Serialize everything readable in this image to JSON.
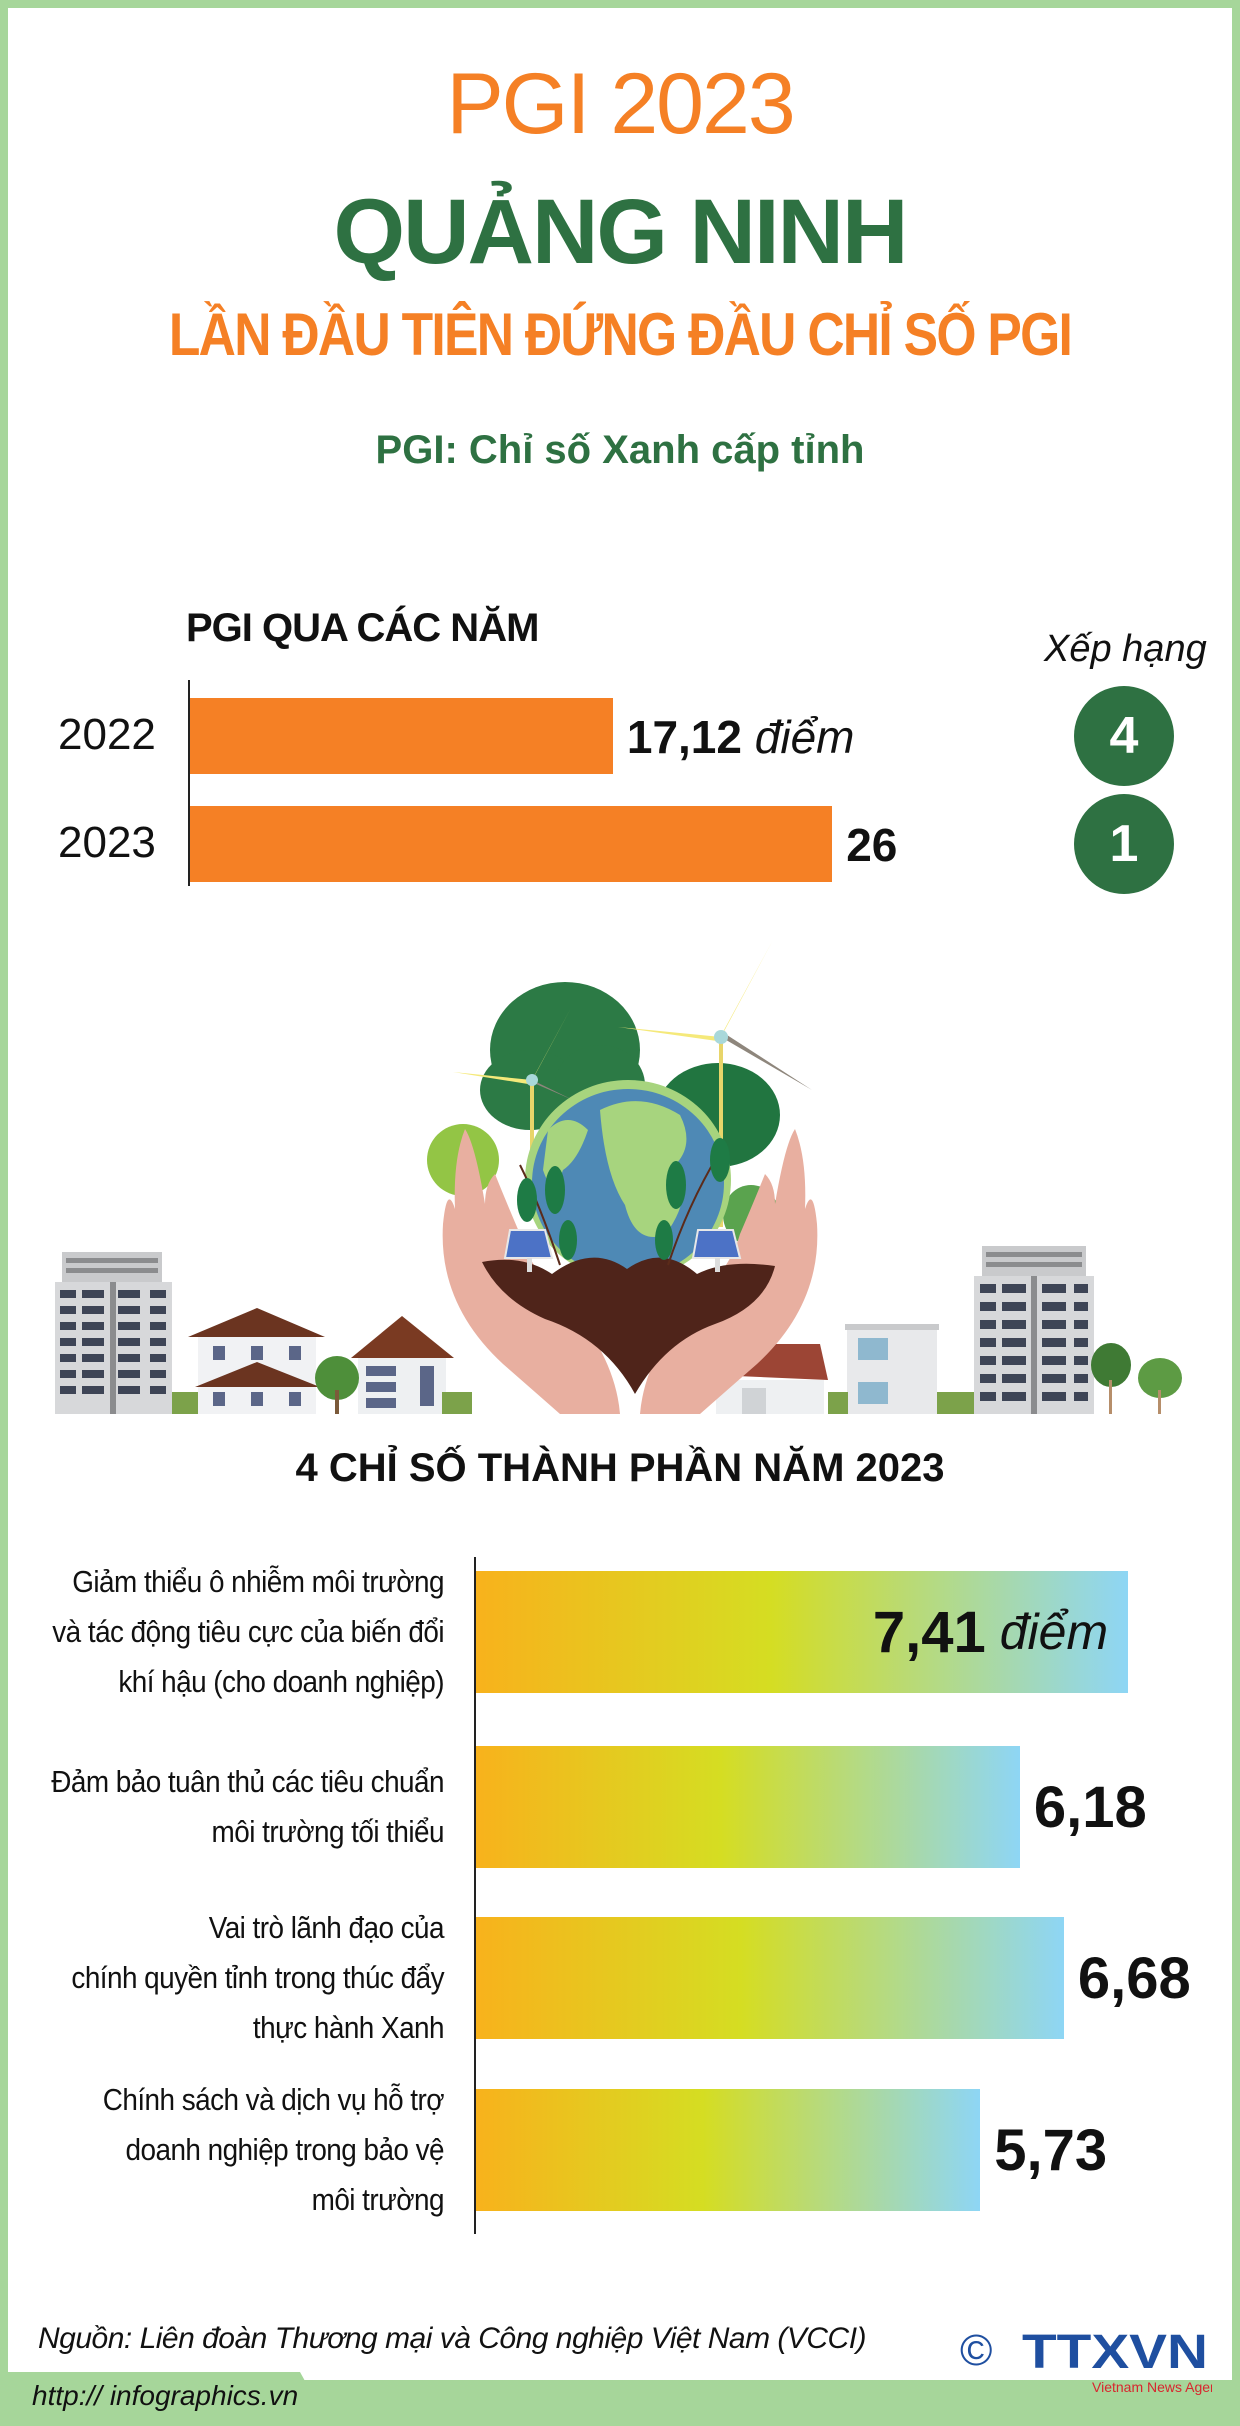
{
  "header": {
    "title": "PGI 2023",
    "province": "QUẢNG NINH",
    "headline": "LẦN ĐẦU TIÊN ĐỨNG ĐẦU CHỈ SỐ PGI",
    "subtitle": "PGI: Chỉ số Xanh cấp tỉnh"
  },
  "colors": {
    "orange": "#F58025",
    "green": "#2E7142",
    "border": "#A6D69A",
    "gradient": [
      "#F8B21C",
      "#D5DD22",
      "#8ED6F5"
    ]
  },
  "chart_data": [
    {
      "type": "bar",
      "orientation": "horizontal",
      "title": "PGI QUA CÁC NĂM",
      "categories": [
        "2022",
        "2023"
      ],
      "values": [
        17.12,
        26
      ],
      "value_labels": [
        "17,12",
        "26"
      ],
      "unit": "điểm",
      "rank_title": "Xếp hạng",
      "ranks": [
        "4",
        "1"
      ]
    },
    {
      "type": "bar",
      "orientation": "horizontal",
      "title": "4 CHỈ SỐ THÀNH PHẦN NĂM 2023",
      "categories": [
        [
          "Giảm thiểu ô nhiễm môi trường",
          "và tác động tiêu cực của biến đổi",
          "khí hậu (cho doanh nghiệp)"
        ],
        [
          "Đảm bảo tuân thủ các tiêu chuẩn",
          "môi trường tối thiểu"
        ],
        [
          "Vai trò lãnh đạo của",
          "chính quyền tỉnh trong thúc đẩy",
          "thực hành Xanh"
        ],
        [
          "Chính sách và dịch vụ hỗ trợ",
          "doanh nghiệp trong bảo vệ",
          "môi trường"
        ]
      ],
      "values": [
        7.41,
        6.18,
        6.68,
        5.73
      ],
      "value_labels": [
        "7,41",
        "6,18",
        "6,68",
        "5,73"
      ],
      "unit": "điểm"
    }
  ],
  "footer": {
    "source": "Nguồn: Liên đoàn Thương mại và Công nghiệp Việt Nam (VCCI)",
    "copyright": "©",
    "logo": "TTXVN",
    "logo_sub": "Vietnam News Agency",
    "url": "http:// infographics.vn"
  }
}
